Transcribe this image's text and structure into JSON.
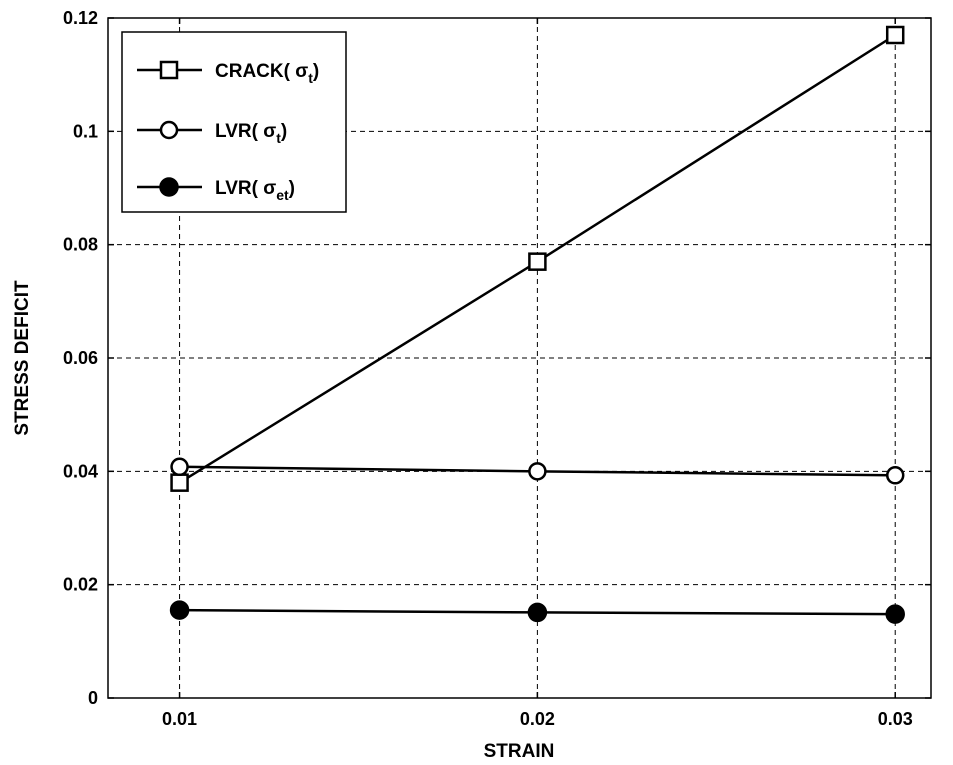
{
  "chart_data": {
    "type": "line",
    "xlabel": "STRAIN",
    "ylabel": "STRESS DEFICIT",
    "x": [
      0.01,
      0.02,
      0.03
    ],
    "xlim": [
      0.008,
      0.031
    ],
    "ylim": [
      0,
      0.12
    ],
    "xticks": [
      "0.01",
      "0.02",
      "0.03"
    ],
    "yticks": [
      "0",
      "0.02",
      "0.04",
      "0.06",
      "0.08",
      "0.1",
      "0.12"
    ],
    "grid": true,
    "legend_position": "top-left",
    "series": [
      {
        "name": "CRACK( σt)",
        "name_main": "CRACK( σ",
        "name_sub": "t",
        "name_end": ")",
        "marker": "open-square",
        "values": [
          0.038,
          0.077,
          0.117
        ]
      },
      {
        "name": "LVR( σt)",
        "name_main": "LVR( σ",
        "name_sub": "t",
        "name_end": ")",
        "marker": "open-circle",
        "values": [
          0.0408,
          0.04,
          0.0393
        ]
      },
      {
        "name": "LVR( σet)",
        "name_main": "LVR( σ",
        "name_sub": "et",
        "name_end": ")",
        "marker": "filled-circle",
        "values": [
          0.0155,
          0.0151,
          0.0148
        ]
      }
    ]
  }
}
